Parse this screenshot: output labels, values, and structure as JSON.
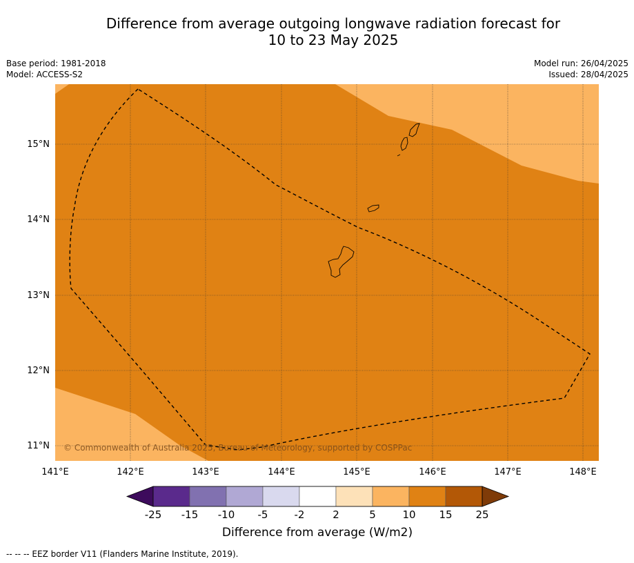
{
  "title_line1": "Difference from average outgoing longwave radiation forecast for",
  "title_line2": "10 to 23 May 2025",
  "meta_left": [
    "Base period: 1981-2018",
    "Model: ACCESS-S2"
  ],
  "meta_right": [
    "Model run: 26/04/2025",
    "Issued: 28/04/2025"
  ],
  "map": {
    "lon_range": [
      141.0,
      148.2
    ],
    "lat_range": [
      10.8,
      15.8
    ],
    "lon_ticks": [
      "141°E",
      "142°E",
      "143°E",
      "144°E",
      "145°E",
      "146°E",
      "147°E",
      "148°E"
    ],
    "lat_ticks": [
      "15°N",
      "14°N",
      "13°N",
      "12°N",
      "11°N"
    ],
    "copyright": "© Commonwealth of Australia 2025, Bureau of Meteorology, supported by COSPPac"
  },
  "colorbar": {
    "labels": [
      "-25",
      "-15",
      "-10",
      "-5",
      "-2",
      "2",
      "5",
      "10",
      "15",
      "25"
    ],
    "colors": [
      "#3d0b5c",
      "#5a2a8c",
      "#8171b0",
      "#b0a8d4",
      "#d9d9ee",
      "#ffffff",
      "#fde1b8",
      "#fbb460",
      "#e08214",
      "#b35806",
      "#7f3b08"
    ],
    "title": "Difference from average (W/m2)"
  },
  "footnote": "-- -- -- EEZ border V11 (Flanders Marine Institute, 2019)."
}
